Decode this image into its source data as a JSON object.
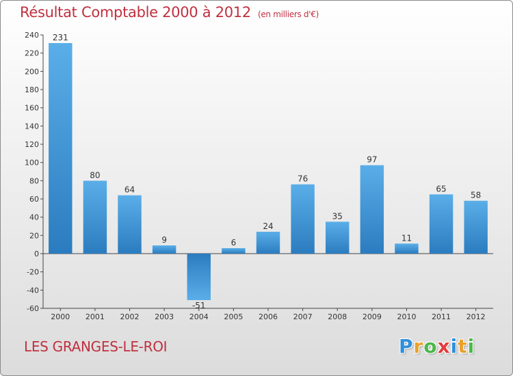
{
  "title": "Résultat Comptable 2000 à 2012",
  "unit_note": "(en milliers d'€)",
  "commune": "LES GRANGES-LE-ROI",
  "logo": {
    "letters": [
      {
        "char": "P",
        "color": "#2f8fdc"
      },
      {
        "char": "r",
        "color": "#e8a12a"
      },
      {
        "char": "o",
        "color": "#4bb84b"
      },
      {
        "char": "x",
        "color": "#e33d3d"
      },
      {
        "char": "i",
        "color": "#2f8fdc"
      },
      {
        "char": "t",
        "color": "#e8a12a"
      },
      {
        "char": "i",
        "color": "#4bb84b"
      }
    ]
  },
  "colors": {
    "title": "#c0303f",
    "bar_light": "#5aaee8",
    "bar_dark": "#2b7cbf",
    "bar_neg_light": "#5aaee8",
    "bar_neg_dark": "#2b7cbf"
  },
  "chart_data": {
    "type": "bar",
    "categories": [
      "2000",
      "2001",
      "2002",
      "2003",
      "2004",
      "2005",
      "2006",
      "2007",
      "2008",
      "2009",
      "2010",
      "2011",
      "2012"
    ],
    "values": [
      231,
      80,
      64,
      9,
      -51,
      6,
      24,
      76,
      35,
      97,
      11,
      65,
      58
    ],
    "value_labels": [
      "231",
      "80",
      "64",
      "9",
      "-51",
      "6",
      "24",
      "76",
      "35",
      "97",
      "11",
      "65",
      "58"
    ],
    "ylim": [
      -60,
      240
    ],
    "yticks": [
      -60,
      -40,
      -20,
      0,
      20,
      40,
      60,
      80,
      100,
      120,
      140,
      160,
      180,
      200,
      220,
      240
    ],
    "ytick_labels": [
      "-60",
      "-40",
      "-20",
      "0",
      "20",
      "40",
      "60",
      "80",
      "100",
      "120",
      "140",
      "160",
      "180",
      "200",
      "220",
      "240"
    ],
    "grid": false,
    "legend": "none"
  }
}
